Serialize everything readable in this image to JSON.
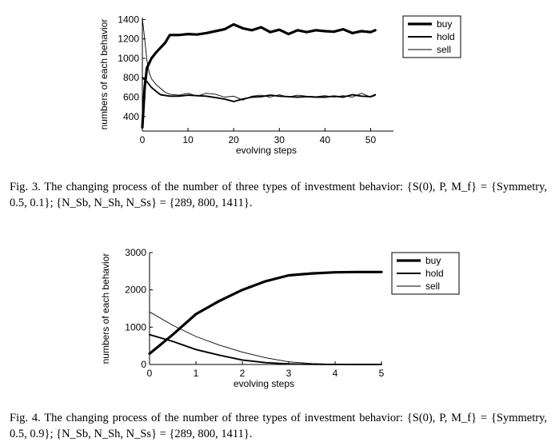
{
  "captions": {
    "fig3": "Fig. 3. The changing process of the number of three types of investment behavior: {S(0), P, M_f} = {Symmetry, 0.5, 0.1}; {N_Sb, N_Sh, N_Ss} = {289, 800, 1411}.",
    "fig4": "Fig. 4. The changing process of the number of three types of investment behavior: {S(0), P, M_f} = {Symmetry, 0.5, 0.9}; {N_Sb, N_Sh, N_Ss} = {289, 800, 1411}."
  },
  "chart_data": [
    {
      "type": "line",
      "xlabel": "evolving steps",
      "ylabel": "numbers of each behavior",
      "xlim": [
        0,
        55
      ],
      "ylim": [
        250,
        1420
      ],
      "x_ticks": [
        "0",
        "10",
        "20",
        "30",
        "40",
        "50"
      ],
      "x_tick_values": [
        0,
        10,
        20,
        30,
        40,
        50
      ],
      "y_ticks": [
        "400",
        "600",
        "800",
        "1000",
        "1200",
        "1400"
      ],
      "y_tick_values": [
        400,
        600,
        800,
        1000,
        1200,
        1400
      ],
      "legend_position": "top-right",
      "series": [
        {
          "name": "buy",
          "line_weight": "thick",
          "x": [
            0,
            0.5,
            1,
            2,
            3,
            4,
            5,
            6,
            8,
            10,
            12,
            14,
            16,
            18,
            20,
            22,
            24,
            26,
            28,
            30,
            32,
            34,
            36,
            38,
            40,
            42,
            44,
            46,
            48,
            50,
            51
          ],
          "values": [
            289,
            700,
            900,
            1000,
            1060,
            1110,
            1160,
            1240,
            1240,
            1250,
            1245,
            1260,
            1280,
            1300,
            1350,
            1310,
            1290,
            1320,
            1270,
            1295,
            1250,
            1290,
            1270,
            1290,
            1280,
            1275,
            1300,
            1260,
            1280,
            1270,
            1290
          ]
        },
        {
          "name": "hold",
          "line_weight": "medium",
          "x": [
            0,
            1,
            2,
            3,
            4,
            6,
            8,
            10,
            12,
            14,
            16,
            18,
            20,
            22,
            24,
            26,
            28,
            30,
            32,
            34,
            36,
            38,
            40,
            42,
            44,
            46,
            48,
            50,
            51
          ],
          "values": [
            800,
            760,
            700,
            660,
            625,
            610,
            610,
            620,
            615,
            610,
            595,
            580,
            555,
            580,
            600,
            605,
            620,
            610,
            605,
            600,
            605,
            600,
            600,
            610,
            600,
            625,
            610,
            605,
            625
          ]
        },
        {
          "name": "sell",
          "line_weight": "thin",
          "x": [
            0,
            0.5,
            1,
            1.5,
            2,
            3,
            4,
            5,
            6,
            8,
            10,
            12,
            14,
            16,
            18,
            20,
            22,
            24,
            26,
            28,
            30,
            32,
            34,
            36,
            38,
            40,
            42,
            44,
            46,
            48,
            50,
            51
          ],
          "values": [
            1411,
            1200,
            980,
            850,
            790,
            730,
            690,
            650,
            630,
            620,
            640,
            610,
            640,
            630,
            600,
            610,
            570,
            610,
            620,
            600,
            625,
            600,
            620,
            610,
            605,
            615,
            600,
            615,
            600,
            640,
            600,
            615
          ]
        }
      ]
    },
    {
      "type": "line",
      "xlabel": "evolving steps",
      "ylabel": "numbers of each behavior",
      "xlim": [
        0,
        5
      ],
      "ylim": [
        0,
        3000
      ],
      "x_ticks": [
        "0",
        "1",
        "2",
        "3",
        "4",
        "5"
      ],
      "x_tick_values": [
        0,
        1,
        2,
        3,
        4,
        5
      ],
      "y_ticks": [
        "0",
        "1000",
        "2000",
        "3000"
      ],
      "y_tick_values": [
        0,
        1000,
        2000,
        3000
      ],
      "legend_position": "top-right",
      "series": [
        {
          "name": "buy",
          "line_weight": "thick",
          "x": [
            0,
            0.5,
            1,
            1.5,
            2,
            2.5,
            3,
            3.5,
            4,
            4.5,
            5
          ],
          "values": [
            289,
            800,
            1350,
            1700,
            2000,
            2230,
            2390,
            2440,
            2470,
            2480,
            2480
          ]
        },
        {
          "name": "hold",
          "line_weight": "medium",
          "x": [
            0,
            0.5,
            1,
            1.5,
            2,
            2.5,
            3,
            3.5,
            4,
            4.5,
            5
          ],
          "values": [
            800,
            620,
            400,
            250,
            120,
            50,
            15,
            5,
            2,
            1,
            0
          ]
        },
        {
          "name": "sell",
          "line_weight": "thin",
          "x": [
            0,
            0.5,
            1,
            1.5,
            2,
            2.5,
            3,
            3.5,
            4,
            4.5,
            5
          ],
          "values": [
            1411,
            1050,
            750,
            520,
            330,
            180,
            70,
            25,
            5,
            2,
            0
          ]
        }
      ]
    }
  ]
}
